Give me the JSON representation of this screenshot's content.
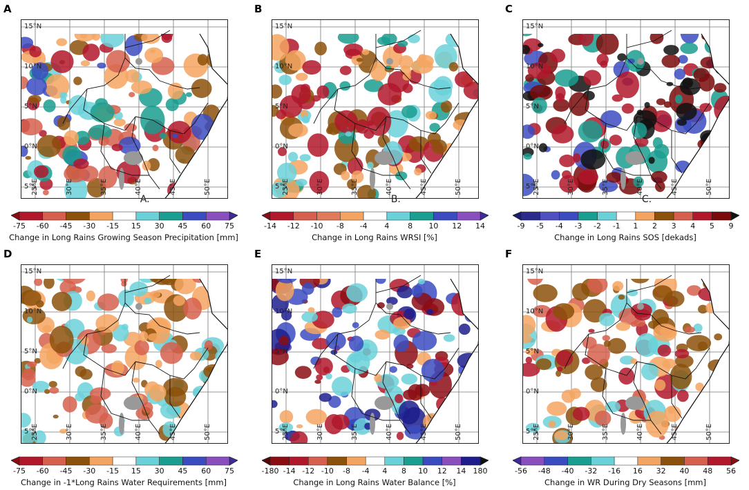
{
  "map_data": {
    "region": "East Africa / Horn of Africa",
    "lat_labels": [
      "15°N",
      "10°N",
      "5°N",
      "0°N",
      "5°S"
    ],
    "lon_labels": [
      "25°E",
      "30°E",
      "35°E",
      "40°E",
      "45°E",
      "50°E"
    ]
  },
  "panels": [
    {
      "letter": "A",
      "sublabel": "A.",
      "title": "Change in Long Rains Growing Season Precipitation [mm]",
      "ticks": [
        "-75",
        "-60",
        "-45",
        "-30",
        "-15",
        "15",
        "30",
        "45",
        "60",
        "75"
      ],
      "colors": [
        "#b2182b",
        "#d6604d",
        "#8c510a",
        "#f4a460",
        "#ffffff",
        "#6bd1d9",
        "#1a9e8f",
        "#3b4cc0",
        "#8a4fbf"
      ],
      "left_color": "#8b0d14",
      "right_color": "#3f2a9e",
      "pattern": [
        "#f4a460",
        "#b2182b",
        "#8c510a",
        "#6bd1d9",
        "#3b4cc0",
        "#1a9e8f",
        "#d6604d"
      ]
    },
    {
      "letter": "B",
      "sublabel": "B.",
      "title": "Change in Long Rains WRSI [%]",
      "ticks": [
        "-14",
        "-12",
        "-10",
        "-8",
        "-4",
        "4",
        "8",
        "10",
        "12",
        "14"
      ],
      "colors": [
        "#b2182b",
        "#d6604d",
        "#e07b5a",
        "#f4a460",
        "#ffffff",
        "#6bd1d9",
        "#1a9e8f",
        "#3b4cc0",
        "#8a4fbf"
      ],
      "left_color": "#8b0d14",
      "right_color": "#3f2a9e",
      "pattern": [
        "#f4a460",
        "#8c510a",
        "#6bd1d9",
        "#b2182b",
        "#1a9e8f"
      ]
    },
    {
      "letter": "C",
      "sublabel": "C.",
      "title": "Change in Long Rains SOS [dekads]",
      "ticks": [
        "-9",
        "-5",
        "-4",
        "-3",
        "-2",
        "-1",
        "1",
        "2",
        "3",
        "4",
        "5",
        "9"
      ],
      "colors": [
        "#2b2b8c",
        "#5050c0",
        "#3b4cc0",
        "#1a9e8f",
        "#6bd1d9",
        "#ffffff",
        "#f4a460",
        "#8c510a",
        "#d6604d",
        "#b2182b",
        "#7a0b0b"
      ],
      "left_color": "#1d1d6e",
      "right_color": "#111111",
      "pattern": [
        "#7a0b0b",
        "#b2182b",
        "#3b4cc0",
        "#1a9e8f",
        "#111111"
      ]
    },
    {
      "letter": "D",
      "sublabel": "",
      "title": "Change in -1*Long Rains Water Requirements [mm]",
      "ticks": [
        "-75",
        "-60",
        "-45",
        "-30",
        "-15",
        "15",
        "30",
        "45",
        "60",
        "75"
      ],
      "colors": [
        "#b2182b",
        "#d6604d",
        "#8c510a",
        "#f4a460",
        "#ffffff",
        "#6bd1d9",
        "#1a9e8f",
        "#3b4cc0",
        "#8a4fbf"
      ],
      "left_color": "#8b0d14",
      "right_color": "#3f2a9e",
      "pattern": [
        "#f4a460",
        "#8c510a",
        "#d6604d",
        "#6bd1d9"
      ]
    },
    {
      "letter": "E",
      "sublabel": "",
      "title": "Change in Long Rains Water Balance [%]",
      "ticks": [
        "-180",
        "-14",
        "-12",
        "-10",
        "-8",
        "-4",
        "4",
        "8",
        "10",
        "12",
        "14",
        "180"
      ],
      "colors": [
        "#8b0d14",
        "#b2182b",
        "#d6604d",
        "#8c510a",
        "#f4a460",
        "#ffffff",
        "#6bd1d9",
        "#1a9e8f",
        "#3b4cc0",
        "#8a4fbf",
        "#1d1d8c"
      ],
      "left_color": "#5a0608",
      "right_color": "#111111",
      "pattern": [
        "#8b0d14",
        "#b2182b",
        "#f4a460",
        "#3b4cc0",
        "#6bd1d9",
        "#1d1d8c"
      ]
    },
    {
      "letter": "F",
      "sublabel": "",
      "title": "Change in WR During Dry Seasons [mm]",
      "ticks": [
        "-56",
        "-48",
        "-40",
        "-32",
        "-16",
        "16",
        "32",
        "40",
        "48",
        "56"
      ],
      "colors": [
        "#8a4fbf",
        "#3b4cc0",
        "#1a9e8f",
        "#6bd1d9",
        "#ffffff",
        "#f4a460",
        "#8c510a",
        "#d6604d",
        "#b2182b"
      ],
      "left_color": "#3f2a9e",
      "right_color": "#8b0d14",
      "pattern": [
        "#8c510a",
        "#b2182b",
        "#f4a460",
        "#d6604d",
        "#6bd1d9"
      ]
    }
  ]
}
